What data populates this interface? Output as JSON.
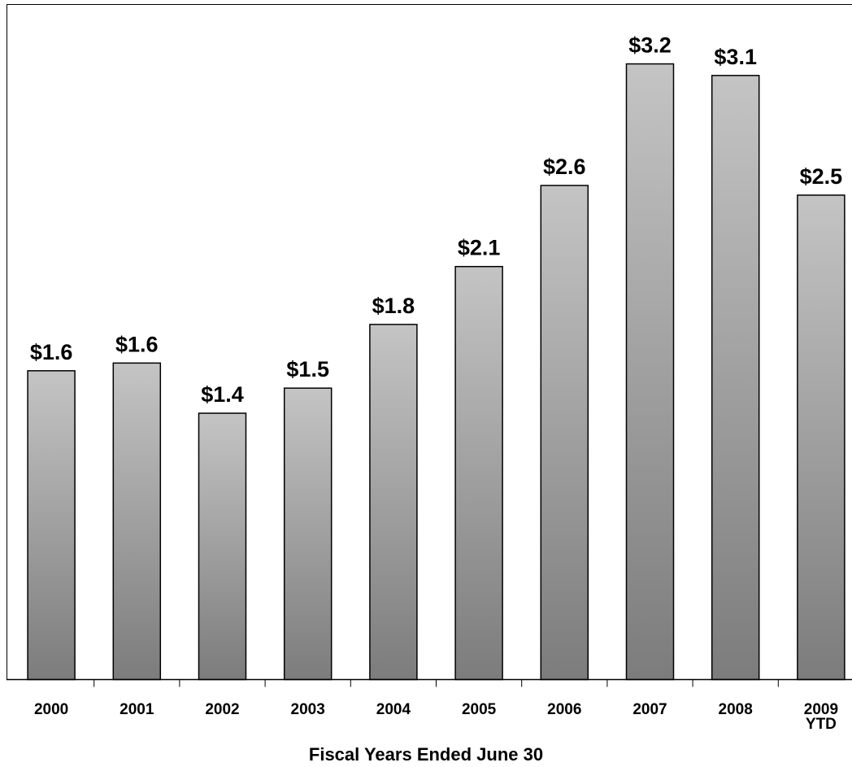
{
  "chart_data": {
    "type": "bar",
    "x_label": "Fiscal Years Ended June 30",
    "categories": [
      "2000",
      "2001",
      "2002",
      "2003",
      "2004",
      "2005",
      "2006",
      "2007",
      "2008",
      "2009\nYTD"
    ],
    "values": [
      1.6,
      1.64,
      1.38,
      1.51,
      1.84,
      2.14,
      2.56,
      3.19,
      3.13,
      2.51
    ],
    "value_labels": [
      "$1.6",
      "$1.6",
      "$1.4",
      "$1.5",
      "$1.8",
      "$2.1",
      "$2.6",
      "$3.2",
      "$3.1",
      "$2.5"
    ],
    "ylim": [
      0,
      3.5
    ],
    "color": [
      "#c4c4c4",
      "#7c7c7c"
    ]
  }
}
